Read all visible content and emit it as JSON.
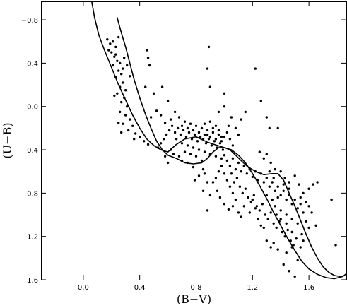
{
  "chart_data": {
    "type": "scatter",
    "title": "",
    "xlabel": "(B−V)",
    "ylabel": "(U−B)",
    "xlim": [
      -0.3,
      1.87
    ],
    "ylim": [
      1.6,
      -0.97
    ],
    "y_inverted": true,
    "xticks": [
      0.0,
      0.4,
      0.8,
      1.2,
      1.6
    ],
    "xtick_labels": [
      "0.0",
      "0.4",
      "0.8",
      "1.2",
      "1.6"
    ],
    "yticks": [
      -0.8,
      -0.4,
      0.0,
      0.4,
      0.8,
      1.2,
      1.6
    ],
    "ytick_labels": [
      "−0.8",
      "−0.4",
      "0.0",
      "0.4",
      "0.8",
      "1.2",
      "1.6"
    ],
    "grid": false,
    "curves": [
      {
        "points": [
          [
            0.06,
            -0.97
          ],
          [
            0.08,
            -0.82
          ],
          [
            0.11,
            -0.66
          ],
          [
            0.15,
            -0.52
          ],
          [
            0.2,
            -0.36
          ],
          [
            0.25,
            -0.2
          ],
          [
            0.3,
            -0.06
          ],
          [
            0.35,
            0.08
          ],
          [
            0.4,
            0.2
          ],
          [
            0.45,
            0.3
          ],
          [
            0.5,
            0.36
          ],
          [
            0.55,
            0.4
          ],
          [
            0.6,
            0.42
          ],
          [
            0.66,
            0.35
          ],
          [
            0.72,
            0.3
          ],
          [
            0.8,
            0.28
          ],
          [
            0.88,
            0.33
          ],
          [
            0.95,
            0.36
          ],
          [
            1.0,
            0.38
          ],
          [
            1.05,
            0.4
          ],
          [
            1.1,
            0.45
          ],
          [
            1.15,
            0.52
          ],
          [
            1.2,
            0.62
          ],
          [
            1.25,
            0.73
          ],
          [
            1.3,
            0.85
          ],
          [
            1.35,
            0.98
          ],
          [
            1.4,
            1.1
          ],
          [
            1.45,
            1.22
          ],
          [
            1.5,
            1.33
          ],
          [
            1.55,
            1.43
          ],
          [
            1.6,
            1.5
          ],
          [
            1.66,
            1.55
          ],
          [
            1.72,
            1.58
          ],
          [
            1.78,
            1.59
          ],
          [
            1.84,
            1.57
          ],
          [
            1.87,
            1.54
          ]
        ]
      },
      {
        "points": [
          [
            0.24,
            -0.82
          ],
          [
            0.27,
            -0.68
          ],
          [
            0.3,
            -0.55
          ],
          [
            0.33,
            -0.4
          ],
          [
            0.36,
            -0.25
          ],
          [
            0.4,
            -0.08
          ],
          [
            0.44,
            0.07
          ],
          [
            0.48,
            0.2
          ],
          [
            0.52,
            0.32
          ],
          [
            0.56,
            0.4
          ],
          [
            0.6,
            0.45
          ],
          [
            0.66,
            0.48
          ],
          [
            0.72,
            0.52
          ],
          [
            0.78,
            0.53
          ],
          [
            0.84,
            0.52
          ],
          [
            0.88,
            0.48
          ],
          [
            0.92,
            0.42
          ],
          [
            0.96,
            0.38
          ],
          [
            1.0,
            0.38
          ],
          [
            1.04,
            0.4
          ],
          [
            1.08,
            0.45
          ],
          [
            1.12,
            0.5
          ],
          [
            1.16,
            0.55
          ],
          [
            1.22,
            0.6
          ],
          [
            1.28,
            0.63
          ],
          [
            1.34,
            0.62
          ],
          [
            1.38,
            0.62
          ],
          [
            1.42,
            0.68
          ],
          [
            1.46,
            0.8
          ],
          [
            1.5,
            0.92
          ],
          [
            1.54,
            1.05
          ],
          [
            1.58,
            1.18
          ],
          [
            1.62,
            1.3
          ],
          [
            1.66,
            1.4
          ],
          [
            1.7,
            1.48
          ],
          [
            1.74,
            1.53
          ],
          [
            1.78,
            1.56
          ],
          [
            1.82,
            1.57
          ]
        ]
      }
    ],
    "points": [
      [
        0.17,
        -0.62
      ],
      [
        0.19,
        -0.58
      ],
      [
        0.21,
        -0.6
      ],
      [
        0.23,
        -0.55
      ],
      [
        0.18,
        -0.52
      ],
      [
        0.2,
        -0.5
      ],
      [
        0.22,
        -0.46
      ],
      [
        0.24,
        -0.42
      ],
      [
        0.26,
        -0.4
      ],
      [
        0.21,
        -0.38
      ],
      [
        0.25,
        -0.33
      ],
      [
        0.27,
        -0.3
      ],
      [
        0.23,
        -0.27
      ],
      [
        0.28,
        -0.22
      ],
      [
        0.26,
        -0.18
      ],
      [
        0.3,
        -0.15
      ],
      [
        0.24,
        -0.12
      ],
      [
        0.29,
        -0.08
      ],
      [
        0.27,
        -0.04
      ],
      [
        0.31,
        0.0
      ],
      [
        0.26,
        0.05
      ],
      [
        0.3,
        0.08
      ],
      [
        0.33,
        0.12
      ],
      [
        0.28,
        0.16
      ],
      [
        0.35,
        0.18
      ],
      [
        0.32,
        0.22
      ],
      [
        0.37,
        0.25
      ],
      [
        0.4,
        0.28
      ],
      [
        0.36,
        0.3
      ],
      [
        0.43,
        0.32
      ],
      [
        0.46,
        0.35
      ],
      [
        0.28,
        -0.35
      ],
      [
        0.25,
        -0.64
      ],
      [
        0.23,
        -0.48
      ],
      [
        0.29,
        -0.45
      ],
      [
        0.31,
        -0.38
      ],
      [
        0.33,
        -0.28
      ],
      [
        0.22,
        -0.1
      ],
      [
        0.25,
        0.15
      ],
      [
        0.27,
        0.24
      ],
      [
        0.46,
        -0.45
      ],
      [
        0.45,
        -0.52
      ],
      [
        0.47,
        -0.38
      ],
      [
        0.44,
        -0.18
      ],
      [
        0.5,
        -0.12
      ],
      [
        0.56,
        -0.18
      ],
      [
        0.6,
        -0.05
      ],
      [
        0.52,
        0.04
      ],
      [
        0.48,
        0.1
      ],
      [
        0.55,
        0.08
      ],
      [
        0.58,
        0.15
      ],
      [
        0.62,
        0.12
      ],
      [
        0.65,
        0.05
      ],
      [
        0.68,
        0.1
      ],
      [
        0.7,
        0.18
      ],
      [
        0.72,
        0.14
      ],
      [
        0.74,
        0.2
      ],
      [
        0.76,
        0.16
      ],
      [
        0.78,
        0.22
      ],
      [
        0.8,
        0.18
      ],
      [
        0.82,
        0.24
      ],
      [
        0.84,
        0.2
      ],
      [
        0.86,
        0.26
      ],
      [
        0.88,
        0.22
      ],
      [
        0.9,
        0.28
      ],
      [
        0.92,
        0.24
      ],
      [
        0.94,
        0.3
      ],
      [
        0.96,
        0.26
      ],
      [
        0.98,
        0.32
      ],
      [
        1.0,
        0.28
      ],
      [
        0.85,
        0.3
      ],
      [
        0.87,
        0.34
      ],
      [
        0.89,
        0.3
      ],
      [
        0.91,
        0.36
      ],
      [
        0.93,
        0.32
      ],
      [
        0.95,
        0.38
      ],
      [
        0.97,
        0.34
      ],
      [
        0.99,
        0.4
      ],
      [
        0.86,
        0.16
      ],
      [
        0.9,
        0.14
      ],
      [
        0.92,
        0.2
      ],
      [
        0.94,
        0.18
      ],
      [
        0.88,
        0.26
      ],
      [
        0.96,
        0.22
      ],
      [
        0.98,
        0.28
      ],
      [
        0.83,
        0.28
      ],
      [
        0.81,
        0.32
      ],
      [
        0.79,
        0.26
      ],
      [
        0.77,
        0.3
      ],
      [
        0.75,
        0.24
      ],
      [
        0.73,
        0.28
      ],
      [
        0.71,
        0.22
      ],
      [
        0.69,
        0.26
      ],
      [
        0.67,
        0.2
      ],
      [
        0.65,
        0.24
      ],
      [
        0.63,
        0.18
      ],
      [
        0.61,
        0.22
      ],
      [
        0.59,
        0.26
      ],
      [
        0.57,
        0.3
      ],
      [
        0.55,
        0.34
      ],
      [
        0.53,
        0.38
      ],
      [
        0.66,
        0.3
      ],
      [
        0.7,
        0.34
      ],
      [
        0.74,
        0.36
      ],
      [
        0.78,
        0.38
      ],
      [
        0.82,
        0.4
      ],
      [
        0.86,
        0.42
      ],
      [
        0.9,
        0.44
      ],
      [
        0.94,
        0.46
      ],
      [
        0.98,
        0.48
      ],
      [
        0.89,
        -0.55
      ],
      [
        0.88,
        -0.35
      ],
      [
        0.9,
        -0.18
      ],
      [
        1.0,
        -0.12
      ],
      [
        1.22,
        -0.35
      ],
      [
        1.15,
        0.05
      ],
      [
        1.12,
        0.12
      ],
      [
        1.05,
        0.1
      ],
      [
        1.03,
        0.18
      ],
      [
        1.08,
        0.2
      ],
      [
        1.1,
        0.26
      ],
      [
        1.02,
        0.24
      ],
      [
        1.04,
        0.3
      ],
      [
        1.06,
        0.36
      ],
      [
        1.26,
        -0.05
      ],
      [
        1.32,
        0.2
      ],
      [
        1.38,
        0.2
      ],
      [
        1.3,
        0.1
      ],
      [
        1.0,
        0.0
      ],
      [
        0.96,
        0.05
      ],
      [
        1.0,
        0.45
      ],
      [
        1.02,
        0.5
      ],
      [
        1.04,
        0.55
      ],
      [
        1.06,
        0.48
      ],
      [
        1.08,
        0.58
      ],
      [
        1.1,
        0.52
      ],
      [
        1.12,
        0.6
      ],
      [
        1.14,
        0.55
      ],
      [
        1.16,
        0.62
      ],
      [
        1.18,
        0.58
      ],
      [
        1.2,
        0.65
      ],
      [
        1.22,
        0.6
      ],
      [
        1.24,
        0.68
      ],
      [
        1.26,
        0.62
      ],
      [
        1.28,
        0.7
      ],
      [
        1.3,
        0.66
      ],
      [
        1.32,
        0.74
      ],
      [
        1.34,
        0.7
      ],
      [
        1.36,
        0.78
      ],
      [
        1.38,
        0.74
      ],
      [
        1.4,
        0.82
      ],
      [
        1.42,
        0.78
      ],
      [
        1.44,
        0.86
      ],
      [
        1.46,
        0.82
      ],
      [
        1.48,
        0.9
      ],
      [
        1.5,
        0.86
      ],
      [
        1.52,
        0.94
      ],
      [
        1.54,
        0.9
      ],
      [
        1.05,
        0.62
      ],
      [
        1.07,
        0.7
      ],
      [
        1.09,
        0.66
      ],
      [
        1.11,
        0.74
      ],
      [
        1.13,
        0.8
      ],
      [
        1.15,
        0.76
      ],
      [
        1.17,
        0.84
      ],
      [
        1.19,
        0.88
      ],
      [
        1.21,
        0.82
      ],
      [
        1.23,
        0.92
      ],
      [
        1.25,
        0.96
      ],
      [
        1.27,
        0.9
      ],
      [
        1.29,
        1.0
      ],
      [
        1.31,
        1.04
      ],
      [
        1.33,
        0.98
      ],
      [
        1.35,
        1.08
      ],
      [
        1.37,
        1.12
      ],
      [
        1.39,
        1.06
      ],
      [
        1.41,
        1.16
      ],
      [
        1.43,
        1.2
      ],
      [
        1.45,
        1.14
      ],
      [
        1.47,
        1.24
      ],
      [
        1.49,
        1.28
      ],
      [
        1.51,
        1.22
      ],
      [
        0.98,
        0.55
      ],
      [
        1.0,
        0.62
      ],
      [
        1.02,
        0.68
      ],
      [
        1.04,
        0.74
      ],
      [
        1.06,
        0.8
      ],
      [
        1.08,
        0.86
      ],
      [
        0.96,
        0.6
      ],
      [
        0.94,
        0.66
      ],
      [
        0.92,
        0.7
      ],
      [
        0.95,
        0.78
      ],
      [
        0.97,
        0.84
      ],
      [
        1.0,
        0.9
      ],
      [
        1.03,
        0.95
      ],
      [
        1.06,
        0.92
      ],
      [
        1.1,
        0.98
      ],
      [
        0.88,
        0.96
      ],
      [
        0.85,
        0.78
      ],
      [
        0.9,
        0.82
      ],
      [
        0.86,
        0.62
      ],
      [
        0.88,
        0.7
      ],
      [
        0.62,
        0.4
      ],
      [
        0.64,
        0.44
      ],
      [
        0.68,
        0.46
      ],
      [
        0.72,
        0.42
      ],
      [
        0.76,
        0.44
      ],
      [
        0.8,
        0.46
      ],
      [
        0.84,
        0.5
      ],
      [
        0.7,
        0.5
      ],
      [
        0.74,
        0.52
      ],
      [
        0.78,
        0.56
      ],
      [
        0.58,
        0.46
      ],
      [
        0.6,
        0.52
      ],
      [
        0.85,
        0.58
      ],
      [
        0.82,
        0.64
      ],
      [
        0.79,
        0.68
      ],
      [
        1.25,
        0.42
      ],
      [
        1.28,
        0.48
      ],
      [
        1.3,
        0.44
      ],
      [
        1.33,
        0.52
      ],
      [
        1.36,
        0.58
      ],
      [
        1.4,
        0.6
      ],
      [
        1.43,
        0.66
      ],
      [
        1.46,
        0.7
      ],
      [
        1.5,
        0.64
      ],
      [
        1.53,
        0.72
      ],
      [
        1.56,
        0.8
      ],
      [
        1.6,
        0.76
      ],
      [
        1.63,
        0.72
      ],
      [
        1.66,
        0.7
      ],
      [
        1.76,
        0.86
      ],
      [
        1.79,
        1.28
      ],
      [
        1.65,
        1.1
      ],
      [
        1.58,
        1.06
      ],
      [
        1.55,
        1.18
      ],
      [
        1.52,
        1.42
      ],
      [
        1.48,
        1.3
      ],
      [
        1.5,
        1.57
      ],
      [
        1.46,
        1.52
      ],
      [
        1.44,
        1.35
      ],
      [
        1.42,
        1.46
      ],
      [
        1.38,
        1.32
      ],
      [
        1.35,
        1.26
      ],
      [
        1.33,
        1.3
      ],
      [
        1.3,
        1.24
      ],
      [
        1.28,
        1.12
      ],
      [
        1.2,
        0.86
      ],
      [
        1.22,
        0.94
      ],
      [
        1.18,
        0.98
      ],
      [
        1.14,
        0.92
      ],
      [
        1.12,
        1.02
      ],
      [
        1.24,
        1.04
      ],
      [
        1.26,
        1.1
      ],
      [
        1.36,
        0.92
      ],
      [
        1.4,
        0.96
      ],
      [
        1.44,
        1.0
      ],
      [
        1.48,
        1.04
      ],
      [
        1.52,
        1.08
      ],
      [
        1.56,
        0.98
      ],
      [
        1.6,
        0.92
      ],
      [
        1.38,
        0.84
      ],
      [
        1.34,
        0.86
      ],
      [
        1.3,
        0.82
      ],
      [
        1.32,
        0.6
      ],
      [
        1.35,
        0.66
      ],
      [
        1.42,
        0.72
      ],
      [
        1.46,
        0.76
      ],
      [
        1.54,
        0.84
      ],
      [
        1.58,
        0.88
      ],
      [
        1.62,
        0.98
      ],
      [
        1.6,
        1.12
      ],
      [
        1.56,
        1.24
      ],
      [
        1.54,
        1.3
      ],
      [
        1.48,
        1.16
      ],
      [
        1.44,
        1.08
      ],
      [
        1.4,
        1.04
      ],
      [
        1.37,
        1.0
      ]
    ]
  }
}
